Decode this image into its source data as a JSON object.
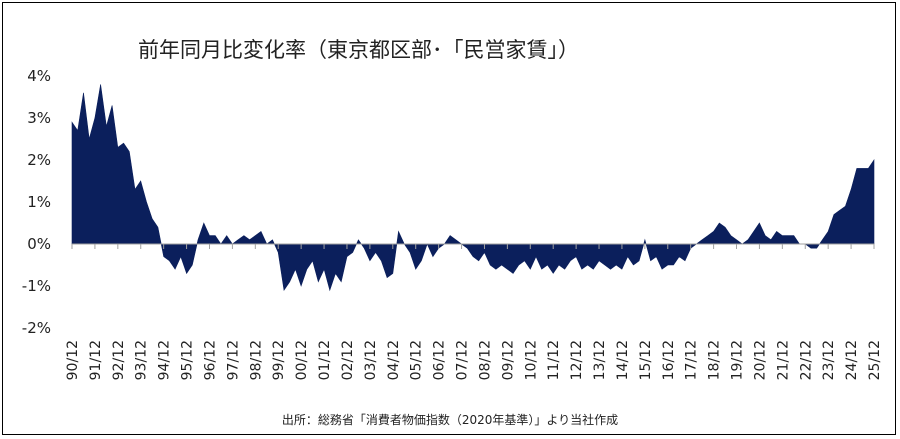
{
  "chart_data": {
    "type": "area",
    "title": "前年同月比変化率（東京都区部･「民営家賃」）",
    "source": "出所：総務省「消費者物価指数（2020年基準）」より当社作成",
    "y_unit": "%",
    "ylim": [
      -2,
      4
    ],
    "yticks": [
      4,
      3,
      2,
      1,
      0,
      -1,
      -2
    ],
    "y_tick_labels": [
      "4%",
      "3%",
      "2%",
      "1%",
      "0%",
      "-1%",
      "-2%"
    ],
    "x_tick_labels": [
      "90/12",
      "91/12",
      "92/12",
      "93/12",
      "94/12",
      "95/12",
      "96/12",
      "97/12",
      "98/12",
      "99/12",
      "00/12",
      "01/12",
      "02/12",
      "03/12",
      "04/12",
      "05/12",
      "06/12",
      "07/12",
      "08/12",
      "09/12",
      "10/12",
      "11/12",
      "12/12",
      "13/12",
      "14/12",
      "15/12",
      "16/12",
      "17/12",
      "18/12",
      "19/12",
      "20/12",
      "21/12",
      "22/12",
      "23/12",
      "24/12",
      "25/12"
    ],
    "x_range": [
      "1990-12",
      "2025-12"
    ],
    "grid": false,
    "series": [
      {
        "color": "#0b1f5c",
        "x": [
          "1990-12",
          "1991-03",
          "1991-06",
          "1991-09",
          "1991-12",
          "1992-03",
          "1992-06",
          "1992-09",
          "1992-12",
          "1993-03",
          "1993-06",
          "1993-09",
          "1993-12",
          "1994-03",
          "1994-06",
          "1994-09",
          "1994-12",
          "1995-03",
          "1995-06",
          "1995-09",
          "1995-12",
          "1996-03",
          "1996-06",
          "1996-09",
          "1996-12",
          "1997-03",
          "1997-06",
          "1997-09",
          "1997-12",
          "1998-03",
          "1998-06",
          "1998-09",
          "1998-12",
          "1999-03",
          "1999-06",
          "1999-09",
          "1999-12",
          "2000-03",
          "2000-06",
          "2000-09",
          "2000-12",
          "2001-03",
          "2001-06",
          "2001-09",
          "2001-12",
          "2002-03",
          "2002-06",
          "2002-09",
          "2002-12",
          "2003-03",
          "2003-06",
          "2003-09",
          "2003-12",
          "2004-03",
          "2004-06",
          "2004-09",
          "2004-12",
          "2005-03",
          "2005-06",
          "2005-09",
          "2005-12",
          "2006-03",
          "2006-06",
          "2006-09",
          "2006-12",
          "2007-03",
          "2007-06",
          "2007-09",
          "2007-12",
          "2008-03",
          "2008-06",
          "2008-09",
          "2008-12",
          "2009-03",
          "2009-06",
          "2009-09",
          "2009-12",
          "2010-03",
          "2010-06",
          "2010-09",
          "2010-12",
          "2011-03",
          "2011-06",
          "2011-09",
          "2011-12",
          "2012-03",
          "2012-06",
          "2012-09",
          "2012-12",
          "2013-03",
          "2013-06",
          "2013-09",
          "2013-12",
          "2014-03",
          "2014-06",
          "2014-09",
          "2014-12",
          "2015-03",
          "2015-06",
          "2015-09",
          "2015-12",
          "2016-03",
          "2016-06",
          "2016-09",
          "2016-12",
          "2017-03",
          "2017-06",
          "2017-09",
          "2017-12",
          "2018-03",
          "2018-06",
          "2018-09",
          "2018-12",
          "2019-03",
          "2019-06",
          "2019-09",
          "2019-12",
          "2020-03",
          "2020-06",
          "2020-09",
          "2020-12",
          "2021-03",
          "2021-06",
          "2021-09",
          "2021-12",
          "2022-03",
          "2022-06",
          "2022-09",
          "2022-12",
          "2023-03",
          "2023-06",
          "2023-09",
          "2023-12",
          "2024-03",
          "2024-06",
          "2024-09",
          "2024-12",
          "2025-03",
          "2025-06",
          "2025-09",
          "2025-12"
        ],
        "values": [
          2.9,
          2.7,
          3.6,
          2.5,
          3.0,
          3.8,
          2.8,
          3.3,
          2.3,
          2.4,
          2.2,
          1.3,
          1.5,
          1.0,
          0.6,
          0.4,
          -0.3,
          -0.4,
          -0.6,
          -0.3,
          -0.7,
          -0.5,
          0.1,
          0.5,
          0.2,
          0.2,
          0.0,
          0.2,
          0.0,
          0.1,
          0.2,
          0.1,
          0.2,
          0.3,
          0.0,
          0.1,
          -0.2,
          -1.1,
          -0.9,
          -0.6,
          -1.0,
          -0.6,
          -0.4,
          -0.9,
          -0.6,
          -1.1,
          -0.7,
          -0.9,
          -0.3,
          -0.2,
          0.1,
          -0.1,
          -0.4,
          -0.2,
          -0.4,
          -0.8,
          -0.7,
          0.3,
          0.0,
          -0.2,
          -0.6,
          -0.4,
          0.0,
          -0.3,
          -0.1,
          0.0,
          0.2,
          0.1,
          0.0,
          -0.1,
          -0.3,
          -0.4,
          -0.2,
          -0.5,
          -0.6,
          -0.5,
          -0.6,
          -0.7,
          -0.5,
          -0.4,
          -0.6,
          -0.3,
          -0.6,
          -0.5,
          -0.7,
          -0.5,
          -0.6,
          -0.4,
          -0.3,
          -0.6,
          -0.5,
          -0.6,
          -0.4,
          -0.5,
          -0.6,
          -0.5,
          -0.6,
          -0.3,
          -0.5,
          -0.4,
          0.1,
          -0.4,
          -0.3,
          -0.6,
          -0.5,
          -0.5,
          -0.3,
          -0.4,
          -0.1,
          0.0,
          0.1,
          0.2,
          0.3,
          0.5,
          0.4,
          0.2,
          0.1,
          0.0,
          0.1,
          0.3,
          0.5,
          0.2,
          0.1,
          0.3,
          0.2,
          0.2,
          0.2,
          0.0,
          0.0,
          -0.1,
          -0.1,
          0.1,
          0.3,
          0.7,
          0.8,
          0.9,
          1.3,
          1.8,
          1.8,
          1.8,
          2.0
        ]
      }
    ]
  }
}
